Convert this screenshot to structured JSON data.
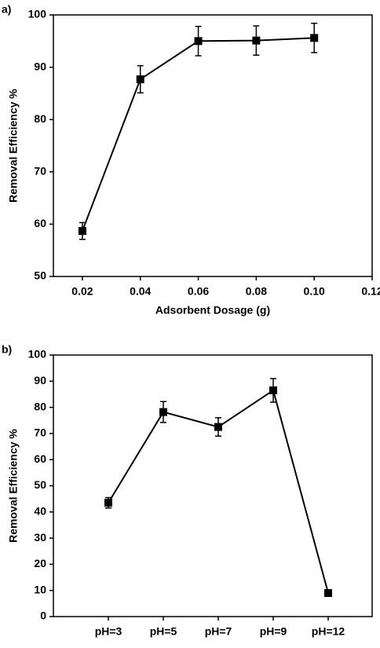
{
  "chart_data": [
    {
      "type": "line",
      "panel_label": "a)",
      "x_label": "Adsorbent Dosage (g)",
      "y_label": "Removal Efficiency %",
      "x": [
        0.02,
        0.04,
        0.06,
        0.08,
        0.1
      ],
      "values": [
        58.7,
        87.7,
        95.0,
        95.1,
        95.6
      ],
      "errors": [
        1.6,
        2.6,
        2.8,
        2.8,
        2.8
      ],
      "color": "#000000",
      "xlim": [
        0.01,
        0.12
      ],
      "xticks": [
        0.02,
        0.04,
        0.06,
        0.08,
        {
          "value": 0.1,
          "label": "0.10"
        },
        0.12
      ],
      "ylim": [
        50,
        100
      ],
      "yticks": [
        50,
        60,
        70,
        80,
        90,
        100
      ]
    },
    {
      "type": "line",
      "panel_label": "b)",
      "y_label": "Removal Efficiency %",
      "categories": [
        "pH=3",
        "pH=5",
        "pH=7",
        "pH=9",
        "pH=12"
      ],
      "values": [
        43.5,
        78.2,
        72.5,
        86.5,
        9.0
      ],
      "errors": [
        2.0,
        4.0,
        3.5,
        4.5,
        0.5
      ],
      "color": "#000000",
      "ylim": [
        0,
        100
      ],
      "yticks": [
        0,
        10,
        20,
        30,
        40,
        50,
        60,
        70,
        80,
        90,
        100
      ]
    }
  ]
}
